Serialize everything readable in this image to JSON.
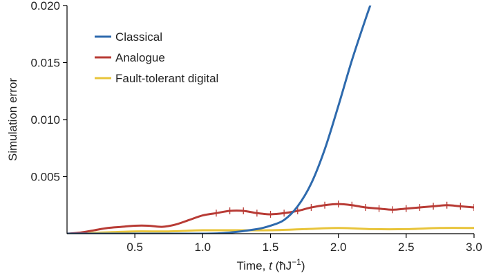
{
  "chart_data": {
    "type": "line",
    "title": "",
    "xlabel_prefix": "Time, ",
    "xlabel_var": "t",
    "xlabel_unit": " (ħJ",
    "xlabel_exp": "−1",
    "xlabel_close": ")",
    "ylabel": "Simulation error",
    "xlim": [
      0.0,
      3.0
    ],
    "ylim": [
      0.0,
      0.02
    ],
    "xticks": [
      0.5,
      1.0,
      1.5,
      2.0,
      2.5,
      3.0
    ],
    "xtick_labels": [
      "0.5",
      "1.0",
      "1.5",
      "2.0",
      "2.5",
      "3.0"
    ],
    "yticks": [
      0.005,
      0.01,
      0.015,
      0.02
    ],
    "ytick_labels": [
      "0.005",
      "0.010",
      "0.015",
      "0.020"
    ],
    "grid": false,
    "legend_position": "top-left",
    "series": [
      {
        "name": "Classical",
        "color": "#2e6aad",
        "marker": "none",
        "x": [
          0.0,
          0.5,
          1.0,
          1.2,
          1.4,
          1.5,
          1.6,
          1.7,
          1.8,
          1.9,
          2.0,
          2.1,
          2.2,
          2.25
        ],
        "y": [
          0.0,
          0.0,
          0.0,
          0.0001,
          0.0004,
          0.0007,
          0.0012,
          0.0024,
          0.0044,
          0.0074,
          0.0112,
          0.0152,
          0.0188,
          0.0205
        ]
      },
      {
        "name": "Analogue",
        "color": "#b83b35",
        "marker": "vertical-tick",
        "x": [
          0.0,
          0.1,
          0.2,
          0.3,
          0.4,
          0.5,
          0.6,
          0.7,
          0.8,
          0.9,
          1.0,
          1.1,
          1.2,
          1.3,
          1.4,
          1.5,
          1.6,
          1.7,
          1.8,
          1.9,
          2.0,
          2.1,
          2.2,
          2.3,
          2.4,
          2.5,
          2.6,
          2.7,
          2.8,
          2.9,
          3.0
        ],
        "y": [
          0.0,
          0.0001,
          0.0003,
          0.0005,
          0.0006,
          0.0007,
          0.0007,
          0.0006,
          0.0008,
          0.0012,
          0.0016,
          0.0018,
          0.002,
          0.002,
          0.0018,
          0.0017,
          0.0018,
          0.002,
          0.0023,
          0.0025,
          0.0026,
          0.0025,
          0.0023,
          0.0022,
          0.0021,
          0.0022,
          0.0023,
          0.0024,
          0.0025,
          0.0024,
          0.0023
        ]
      },
      {
        "name": "Fault-tolerant digital",
        "color": "#e8c43a",
        "marker": "none",
        "x": [
          0.0,
          0.25,
          0.5,
          0.75,
          1.0,
          1.25,
          1.5,
          1.75,
          2.0,
          2.25,
          2.5,
          2.75,
          3.0
        ],
        "y": [
          0.0,
          0.0001,
          0.0002,
          0.0002,
          0.0003,
          0.0003,
          0.0003,
          0.0004,
          0.0005,
          0.0004,
          0.0004,
          0.0005,
          0.0005
        ]
      }
    ]
  }
}
